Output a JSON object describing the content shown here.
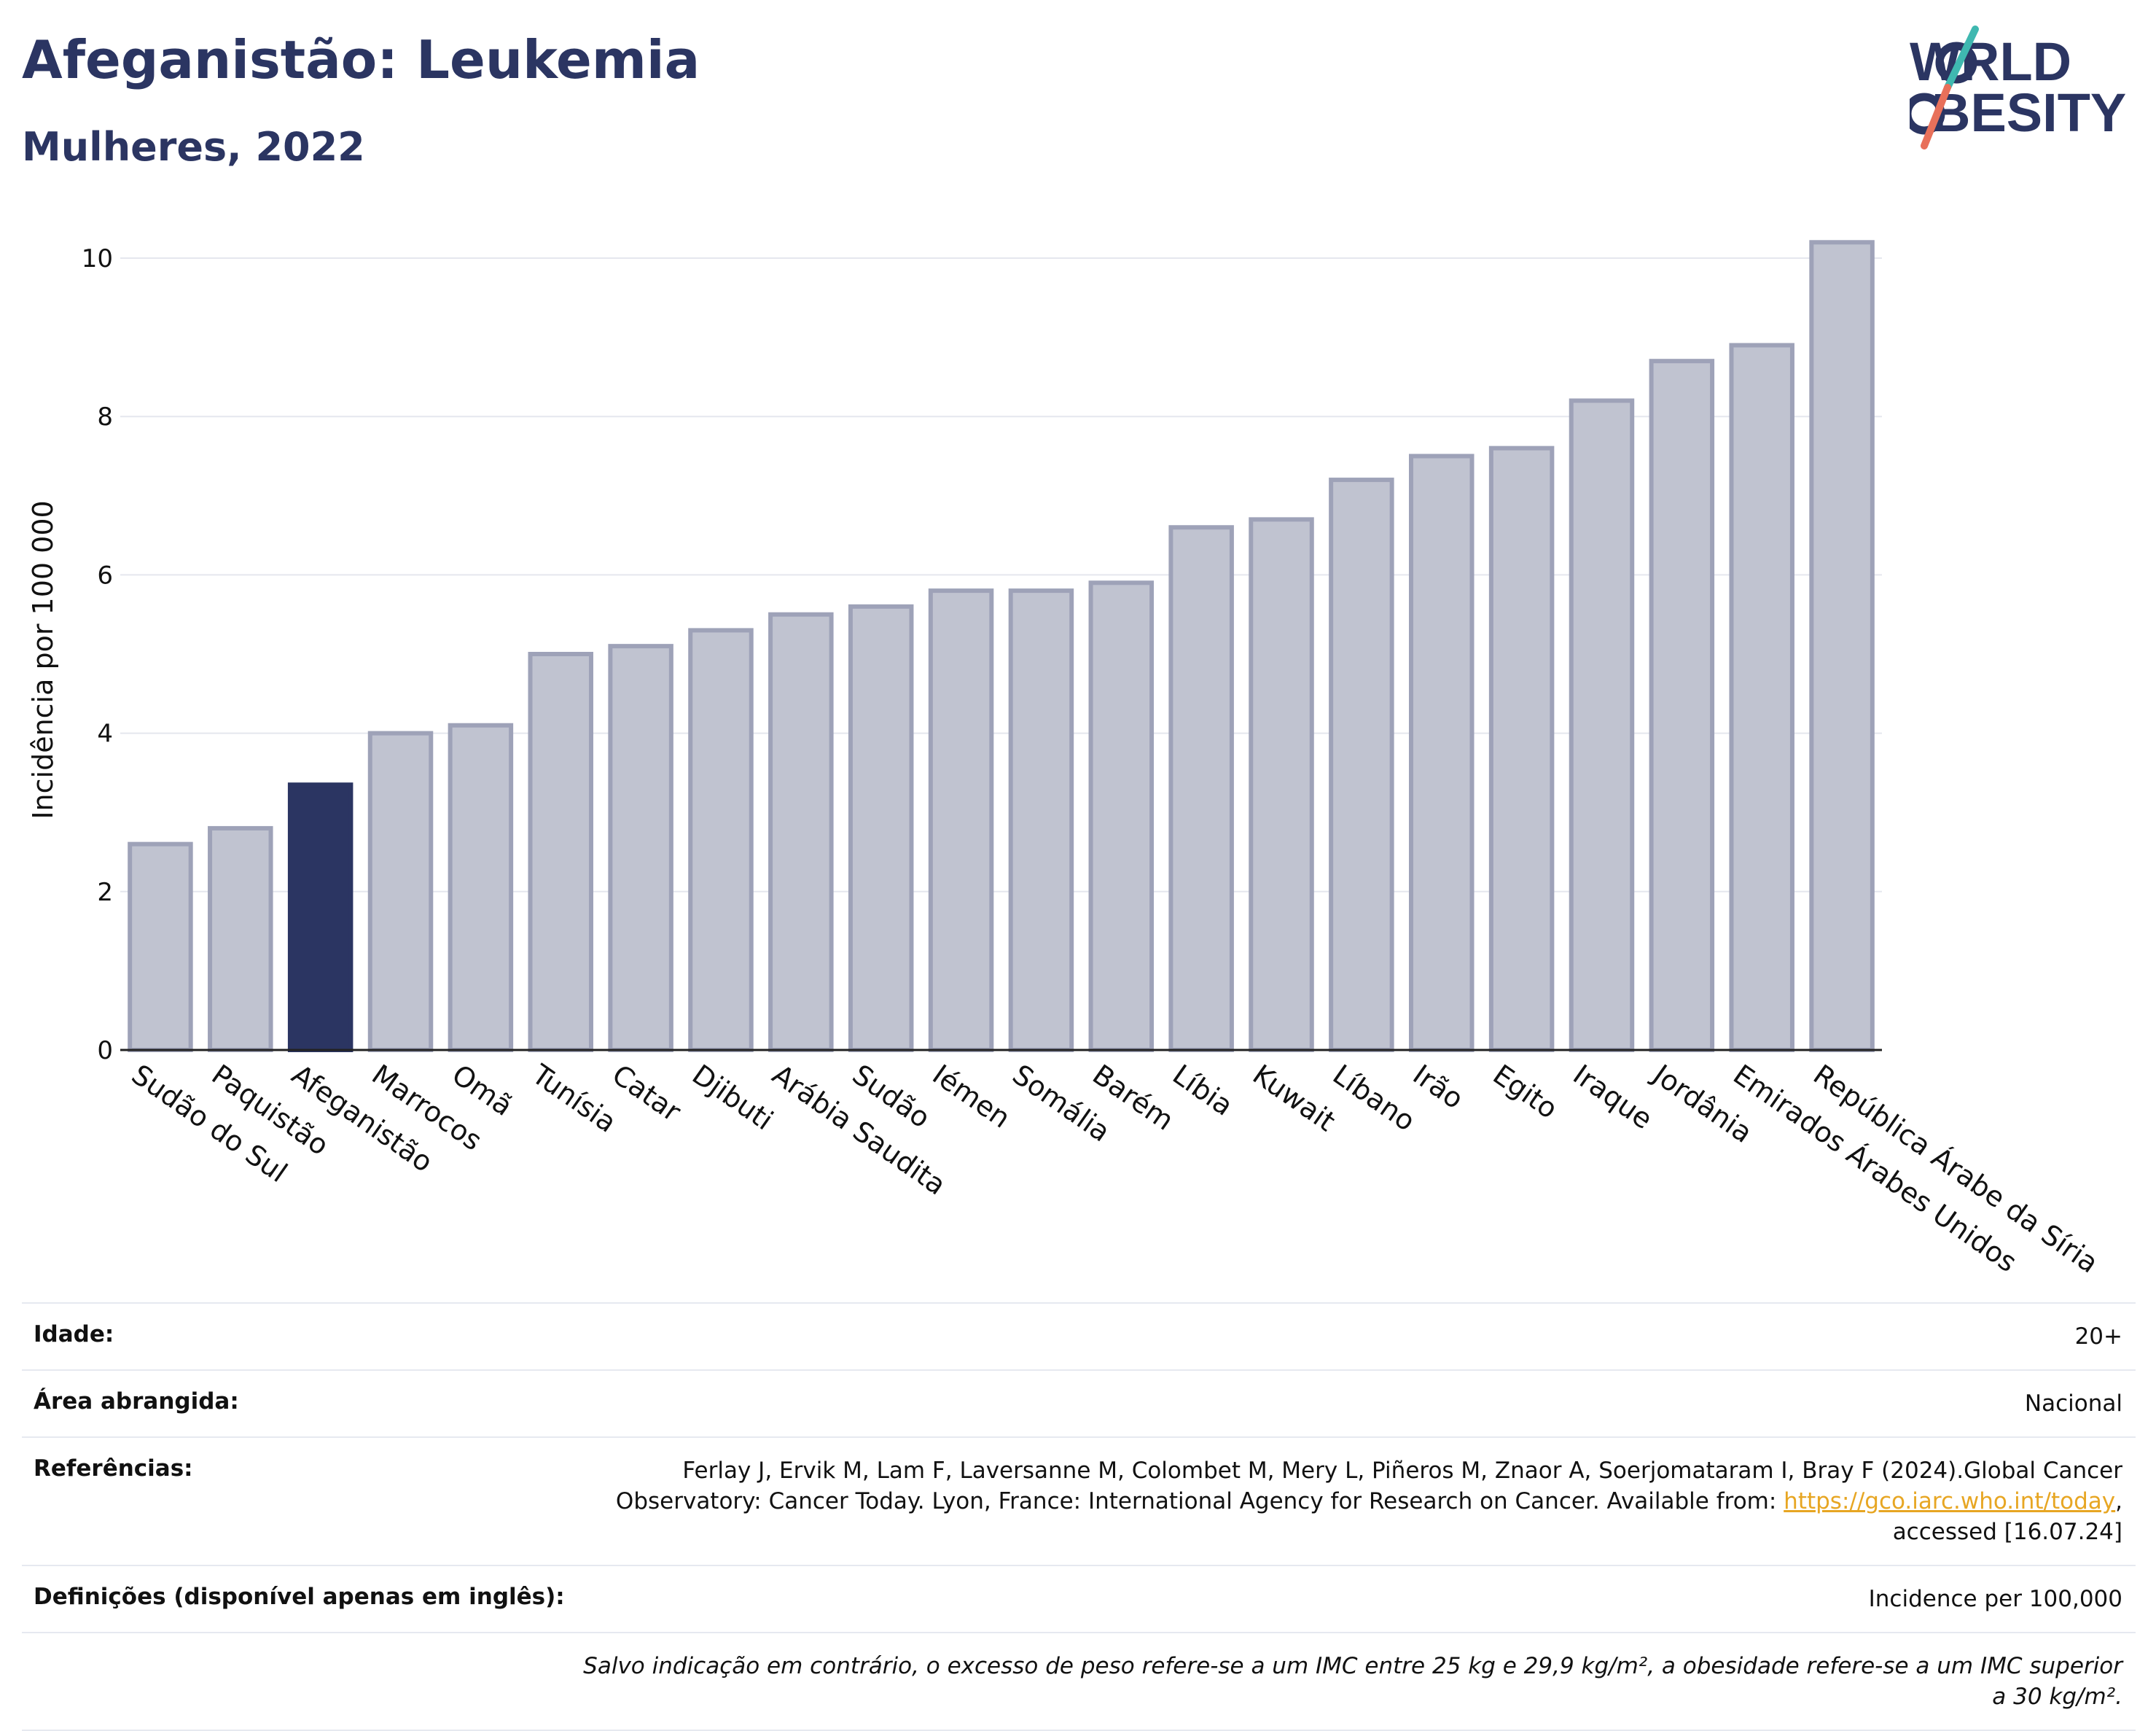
{
  "header": {
    "title": "Afeganistão: Leukemia",
    "subtitle": "Mulheres, 2022",
    "logo_text": "WORLD OBESITY"
  },
  "colors": {
    "highlight": "#2b3562",
    "bar_fill": "#c0c3d0",
    "bar_stroke": "#9ea2b8",
    "grid": "#e5e7ee",
    "logo_teal": "#3fb8b0",
    "logo_coral": "#e8705a"
  },
  "chart_data": {
    "type": "bar",
    "title": "Afeganistão: Leukemia",
    "subtitle": "Mulheres, 2022",
    "ylabel": "Incidência por 100 000",
    "xlabel": "",
    "ylim": [
      0,
      10.5
    ],
    "yticks": [
      0,
      2,
      4,
      6,
      8,
      10
    ],
    "grid": true,
    "highlight_category": "Afeganistão",
    "categories": [
      "Sudão do Sul",
      "Paquistão",
      "Afeganistão",
      "Marrocos",
      "Omã",
      "Tunísia",
      "Catar",
      "Djibuti",
      "Arábia Saudita",
      "Sudão",
      "Iémen",
      "Somália",
      "Barém",
      "Líbia",
      "Kuwait",
      "Líbano",
      "Irão",
      "Egito",
      "Iraque",
      "Jordânia",
      "Emirados Árabes Unidos",
      "República Árabe da Síria"
    ],
    "values": [
      2.6,
      2.8,
      3.35,
      4.0,
      4.1,
      5.0,
      5.1,
      5.3,
      5.5,
      5.6,
      5.8,
      5.8,
      5.9,
      6.6,
      6.7,
      7.2,
      7.5,
      7.6,
      8.2,
      8.7,
      8.9,
      10.2
    ]
  },
  "info": {
    "age_label": "Idade:",
    "age_value": "20+",
    "area_label": "Área abrangida:",
    "area_value": "Nacional",
    "refs_label": "Referências:",
    "refs_text": "Ferlay J, Ervik M, Lam F, Laversanne M, Colombet M, Mery L, Piñeros M, Znaor A, Soerjomataram I, Bray F (2024).Global Cancer Observatory: Cancer Today. Lyon, France: International Agency for Research on Cancer. Available from: ",
    "refs_link": "https://gco.iarc.who.int/today",
    "refs_suffix": ", accessed [16.07.24]",
    "defs_label": "Definições (disponível apenas em inglês):",
    "defs_value": "Incidence per 100,000",
    "note": "Salvo indicação em contrário, o excesso de peso refere-se a um IMC entre 25 kg e 29,9 kg/m², a obesidade refere-se a um IMC superior a 30 kg/m²."
  }
}
